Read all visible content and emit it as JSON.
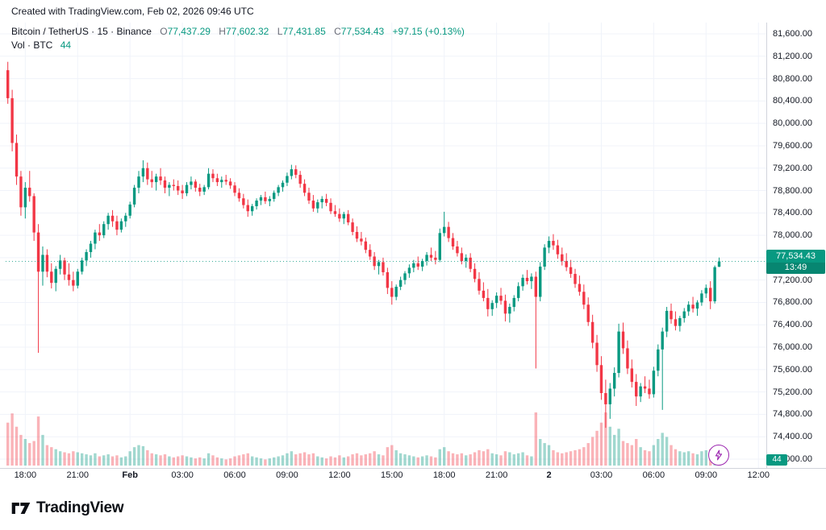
{
  "watermark": "Created with TradingView.com, Feb 02, 2026 09:46 UTC",
  "legend": {
    "title": "Bitcoin / TetherUS · 15 · Binance",
    "ohlc": {
      "o_label": "O",
      "o": "77,437.29",
      "h_label": "H",
      "h": "77,602.32",
      "l_label": "L",
      "l": "77,431.85",
      "c_label": "C",
      "c": "77,534.43",
      "change": "+97.15 (+0.13%)"
    },
    "volume_label": "Vol · BTC",
    "volume_value": "44"
  },
  "price_badge": {
    "price": "77,534.43",
    "countdown": "13:49"
  },
  "volume_badge": {
    "value": "44"
  },
  "footer": {
    "brand": "TradingView"
  },
  "colors": {
    "up": "#089981",
    "down": "#f23645",
    "vol_up": "rgba(8,153,129,0.38)",
    "vol_down": "rgba(242,54,69,0.38)",
    "grid": "#f0f3fa",
    "axis_line": "#d1d4dc",
    "price_line": "#089981",
    "flash": "#9c27b0"
  },
  "axis": {
    "price_min": 74000,
    "price_max": 81600,
    "price_step": 400,
    "price_ticks": [
      {
        "v": 81600,
        "label": "81,600.00"
      },
      {
        "v": 81200,
        "label": "81,200.00"
      },
      {
        "v": 80800,
        "label": "80,800.00"
      },
      {
        "v": 80400,
        "label": "80,400.00"
      },
      {
        "v": 80000,
        "label": "80,000.00"
      },
      {
        "v": 79600,
        "label": "79,600.00"
      },
      {
        "v": 79200,
        "label": "79,200.00"
      },
      {
        "v": 78800,
        "label": "78,800.00"
      },
      {
        "v": 78400,
        "label": "78,400.00"
      },
      {
        "v": 78000,
        "label": "78,000.00"
      },
      {
        "v": 77600,
        "label": "77,600.00"
      },
      {
        "v": 77200,
        "label": "77,200.00"
      },
      {
        "v": 76800,
        "label": "76,800.00"
      },
      {
        "v": 76400,
        "label": "76,400.00"
      },
      {
        "v": 76000,
        "label": "76,000.00"
      },
      {
        "v": 75600,
        "label": "75,600.00"
      },
      {
        "v": 75200,
        "label": "75,200.00"
      },
      {
        "v": 74800,
        "label": "74,800.00"
      },
      {
        "v": 74400,
        "label": "74,400.00"
      },
      {
        "v": 74000,
        "label": "74,000.00"
      }
    ],
    "time_labels": [
      {
        "text": "18:00",
        "index": 4
      },
      {
        "text": "21:00",
        "index": 16
      },
      {
        "text": "Feb",
        "index": 28,
        "bold": true
      },
      {
        "text": "03:00",
        "index": 40
      },
      {
        "text": "06:00",
        "index": 52
      },
      {
        "text": "09:00",
        "index": 64
      },
      {
        "text": "12:00",
        "index": 76
      },
      {
        "text": "15:00",
        "index": 88
      },
      {
        "text": "18:00",
        "index": 100
      },
      {
        "text": "21:00",
        "index": 112
      },
      {
        "text": "2",
        "index": 124,
        "bold": true
      },
      {
        "text": "03:00",
        "index": 136
      },
      {
        "text": "06:00",
        "index": 148
      },
      {
        "text": "09:00",
        "index": 160
      },
      {
        "text": "12:00",
        "index": 172
      }
    ]
  },
  "chart_data": {
    "type": "candlestick",
    "title": "Bitcoin / TetherUS",
    "exchange": "Binance",
    "interval_minutes": 15,
    "last_price": 77534.43,
    "change": 97.15,
    "change_pct": 0.13,
    "price_range": [
      74000,
      81600
    ],
    "volume_unit": "BTC",
    "current_volume": 44,
    "columns": [
      "open",
      "high",
      "low",
      "close",
      "volume"
    ],
    "candles": [
      [
        80950,
        81100,
        80350,
        80450,
        420
      ],
      [
        80450,
        80600,
        79500,
        79650,
        510
      ],
      [
        79650,
        79800,
        78900,
        79050,
        380
      ],
      [
        79050,
        79150,
        78350,
        78500,
        300
      ],
      [
        78500,
        78950,
        78300,
        78850,
        260
      ],
      [
        78850,
        79150,
        78600,
        78700,
        220
      ],
      [
        78700,
        78750,
        77900,
        78050,
        240
      ],
      [
        78050,
        78200,
        75900,
        77350,
        480
      ],
      [
        77350,
        77800,
        77100,
        77650,
        300
      ],
      [
        77650,
        77750,
        77250,
        77350,
        200
      ],
      [
        77350,
        77500,
        77050,
        77150,
        180
      ],
      [
        77150,
        77450,
        77000,
        77400,
        160
      ],
      [
        77400,
        77650,
        77300,
        77550,
        140
      ],
      [
        77550,
        77600,
        77200,
        77300,
        130
      ],
      [
        77300,
        77500,
        77100,
        77200,
        120
      ],
      [
        77200,
        77350,
        77000,
        77100,
        140
      ],
      [
        77100,
        77400,
        77050,
        77350,
        130
      ],
      [
        77350,
        77600,
        77300,
        77550,
        120
      ],
      [
        77550,
        77750,
        77450,
        77700,
        110
      ],
      [
        77700,
        77900,
        77600,
        77850,
        100
      ],
      [
        77850,
        78100,
        77750,
        78050,
        120
      ],
      [
        78050,
        78200,
        77900,
        78000,
        90
      ],
      [
        78000,
        78250,
        77950,
        78200,
        100
      ],
      [
        78200,
        78400,
        78100,
        78350,
        110
      ],
      [
        78350,
        78450,
        78150,
        78250,
        90
      ],
      [
        78250,
        78350,
        78000,
        78100,
        100
      ],
      [
        78100,
        78300,
        78050,
        78250,
        80
      ],
      [
        78250,
        78400,
        78150,
        78350,
        90
      ],
      [
        78350,
        78600,
        78300,
        78550,
        140
      ],
      [
        78550,
        78900,
        78500,
        78850,
        180
      ],
      [
        78850,
        79150,
        78750,
        79050,
        200
      ],
      [
        79050,
        79340,
        78950,
        79200,
        190
      ],
      [
        79200,
        79300,
        78900,
        79000,
        150
      ],
      [
        79000,
        79150,
        78850,
        78950,
        120
      ],
      [
        78950,
        79100,
        78800,
        79050,
        110
      ],
      [
        79050,
        79200,
        78900,
        78980,
        100
      ],
      [
        78980,
        79050,
        78750,
        78850,
        110
      ],
      [
        78850,
        78950,
        78700,
        78900,
        90
      ],
      [
        78900,
        79000,
        78800,
        78880,
        80
      ],
      [
        78880,
        78980,
        78720,
        78800,
        90
      ],
      [
        78800,
        78900,
        78650,
        78750,
        100
      ],
      [
        78750,
        78950,
        78700,
        78900,
        90
      ],
      [
        78900,
        79050,
        78820,
        78960,
        80
      ],
      [
        78960,
        79000,
        78780,
        78850,
        70
      ],
      [
        78850,
        78920,
        78700,
        78780,
        80
      ],
      [
        78780,
        78900,
        78720,
        78860,
        70
      ],
      [
        78860,
        79200,
        78820,
        79100,
        120
      ],
      [
        79100,
        79180,
        78950,
        79020,
        100
      ],
      [
        79020,
        79100,
        78880,
        78950,
        80
      ],
      [
        78950,
        79050,
        78850,
        78990,
        70
      ],
      [
        78990,
        79080,
        78900,
        78960,
        60
      ],
      [
        78960,
        79020,
        78830,
        78890,
        70
      ],
      [
        78890,
        78950,
        78700,
        78760,
        90
      ],
      [
        78760,
        78840,
        78600,
        78660,
        100
      ],
      [
        78660,
        78740,
        78480,
        78540,
        110
      ],
      [
        78540,
        78640,
        78330,
        78430,
        120
      ],
      [
        78430,
        78560,
        78350,
        78520,
        90
      ],
      [
        78520,
        78660,
        78460,
        78620,
        80
      ],
      [
        78620,
        78720,
        78540,
        78680,
        70
      ],
      [
        78680,
        78780,
        78560,
        78610,
        60
      ],
      [
        78610,
        78700,
        78520,
        78650,
        70
      ],
      [
        78650,
        78800,
        78600,
        78760,
        80
      ],
      [
        78760,
        78900,
        78700,
        78860,
        90
      ],
      [
        78860,
        78980,
        78780,
        78940,
        100
      ],
      [
        78940,
        79120,
        78880,
        79060,
        120
      ],
      [
        79060,
        79260,
        79000,
        79180,
        140
      ],
      [
        79180,
        79250,
        79020,
        79080,
        110
      ],
      [
        79080,
        79150,
        78850,
        78920,
        120
      ],
      [
        78920,
        79000,
        78700,
        78760,
        130
      ],
      [
        78760,
        78850,
        78560,
        78620,
        110
      ],
      [
        78620,
        78720,
        78420,
        78480,
        120
      ],
      [
        78480,
        78640,
        78400,
        78590,
        90
      ],
      [
        78590,
        78700,
        78480,
        78650,
        80
      ],
      [
        78650,
        78740,
        78520,
        78580,
        70
      ],
      [
        78580,
        78660,
        78380,
        78430,
        90
      ],
      [
        78430,
        78540,
        78330,
        78380,
        80
      ],
      [
        78380,
        78480,
        78240,
        78300,
        100
      ],
      [
        78300,
        78420,
        78200,
        78380,
        80
      ],
      [
        78380,
        78450,
        78180,
        78230,
        90
      ],
      [
        78230,
        78300,
        78000,
        78060,
        110
      ],
      [
        78060,
        78160,
        77880,
        77940,
        120
      ],
      [
        77940,
        78060,
        77820,
        77890,
        100
      ],
      [
        77890,
        77960,
        77680,
        77740,
        110
      ],
      [
        77740,
        77840,
        77560,
        77620,
        120
      ],
      [
        77620,
        77700,
        77380,
        77450,
        140
      ],
      [
        77450,
        77560,
        77300,
        77520,
        110
      ],
      [
        77520,
        77600,
        77280,
        77340,
        100
      ],
      [
        77340,
        77420,
        76950,
        77060,
        180
      ],
      [
        77060,
        77180,
        76760,
        76900,
        200
      ],
      [
        76900,
        77120,
        76840,
        77080,
        150
      ],
      [
        77080,
        77260,
        77020,
        77200,
        120
      ],
      [
        77200,
        77360,
        77120,
        77320,
        110
      ],
      [
        77320,
        77480,
        77240,
        77420,
        100
      ],
      [
        77420,
        77560,
        77340,
        77500,
        90
      ],
      [
        77500,
        77620,
        77380,
        77440,
        80
      ],
      [
        77440,
        77580,
        77360,
        77540,
        90
      ],
      [
        77540,
        77700,
        77460,
        77650,
        100
      ],
      [
        77650,
        77780,
        77540,
        77600,
        90
      ],
      [
        77600,
        77720,
        77480,
        77560,
        80
      ],
      [
        77560,
        78120,
        77520,
        78040,
        160
      ],
      [
        78040,
        78420,
        77980,
        78150,
        180
      ],
      [
        78150,
        78240,
        77880,
        77950,
        140
      ],
      [
        77950,
        78040,
        77740,
        77800,
        120
      ],
      [
        77800,
        77900,
        77620,
        77680,
        110
      ],
      [
        77680,
        77780,
        77480,
        77540,
        120
      ],
      [
        77540,
        77660,
        77420,
        77600,
        100
      ],
      [
        77600,
        77680,
        77340,
        77400,
        110
      ],
      [
        77400,
        77500,
        77160,
        77220,
        130
      ],
      [
        77220,
        77340,
        76940,
        77010,
        150
      ],
      [
        77010,
        77160,
        76820,
        76880,
        140
      ],
      [
        76880,
        77040,
        76550,
        76680,
        160
      ],
      [
        76680,
        76840,
        76560,
        76790,
        120
      ],
      [
        76790,
        76980,
        76700,
        76920,
        110
      ],
      [
        76920,
        77060,
        76760,
        76830,
        100
      ],
      [
        76830,
        76940,
        76460,
        76600,
        140
      ],
      [
        76600,
        76780,
        76440,
        76720,
        130
      ],
      [
        76720,
        76930,
        76640,
        76880,
        110
      ],
      [
        76880,
        77160,
        76820,
        77090,
        120
      ],
      [
        77090,
        77300,
        77010,
        77240,
        130
      ],
      [
        77240,
        77380,
        77120,
        77180,
        100
      ],
      [
        77180,
        77320,
        77040,
        77260,
        90
      ],
      [
        77260,
        77350,
        75620,
        76900,
        520
      ],
      [
        76900,
        77520,
        76820,
        77440,
        260
      ],
      [
        77440,
        77840,
        77380,
        77780,
        220
      ],
      [
        77780,
        77980,
        77680,
        77900,
        200
      ],
      [
        77900,
        78020,
        77740,
        77820,
        150
      ],
      [
        77820,
        77920,
        77580,
        77660,
        130
      ],
      [
        77660,
        77780,
        77460,
        77540,
        120
      ],
      [
        77540,
        77680,
        77360,
        77430,
        130
      ],
      [
        77430,
        77560,
        77240,
        77310,
        140
      ],
      [
        77310,
        77400,
        77060,
        77130,
        150
      ],
      [
        77130,
        77280,
        76920,
        76990,
        160
      ],
      [
        76990,
        77120,
        76680,
        76760,
        180
      ],
      [
        76760,
        76890,
        76380,
        76450,
        220
      ],
      [
        76450,
        76580,
        75980,
        76080,
        280
      ],
      [
        76080,
        76220,
        75560,
        75680,
        340
      ],
      [
        75680,
        75840,
        75060,
        75180,
        420
      ],
      [
        75180,
        75420,
        74560,
        74980,
        520
      ],
      [
        74980,
        75360,
        74720,
        75260,
        380
      ],
      [
        75260,
        75640,
        75120,
        75540,
        300
      ],
      [
        75540,
        76420,
        75460,
        76280,
        360
      ],
      [
        76280,
        76440,
        75880,
        75980,
        240
      ],
      [
        75980,
        76120,
        75520,
        75620,
        220
      ],
      [
        75620,
        75780,
        75280,
        75380,
        200
      ],
      [
        75380,
        75520,
        74950,
        75120,
        260
      ],
      [
        75120,
        75360,
        75020,
        75300,
        180
      ],
      [
        75300,
        75480,
        75180,
        75260,
        150
      ],
      [
        75260,
        75420,
        75080,
        75160,
        140
      ],
      [
        75160,
        75650,
        75100,
        75580,
        200
      ],
      [
        75580,
        76050,
        75480,
        75960,
        260
      ],
      [
        75960,
        76350,
        74880,
        76280,
        320
      ],
      [
        76280,
        76720,
        76180,
        76650,
        280
      ],
      [
        76650,
        76780,
        76420,
        76500,
        200
      ],
      [
        76500,
        76640,
        76300,
        76380,
        160
      ],
      [
        76380,
        76560,
        76280,
        76520,
        140
      ],
      [
        76520,
        76700,
        76440,
        76640,
        130
      ],
      [
        76640,
        76820,
        76560,
        76760,
        140
      ],
      [
        76760,
        76900,
        76620,
        76690,
        120
      ],
      [
        76690,
        76840,
        76560,
        76800,
        110
      ],
      [
        76800,
        77020,
        76740,
        76960,
        140
      ],
      [
        76960,
        77120,
        76880,
        77060,
        150
      ],
      [
        77060,
        77180,
        76680,
        76820,
        160
      ],
      [
        76820,
        77460,
        76780,
        77430,
        180
      ],
      [
        77437.29,
        77602.32,
        77431.85,
        77534.43,
        44
      ]
    ]
  }
}
